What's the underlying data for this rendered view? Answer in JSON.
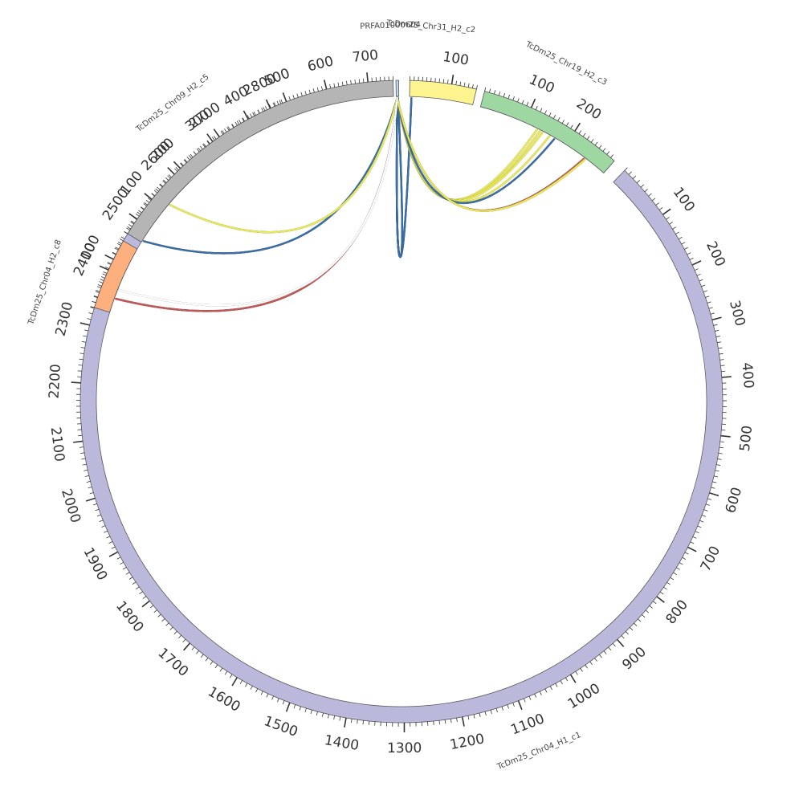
{
  "chart_data": {
    "type": "chord",
    "segments": [
      {
        "id": "c1",
        "name": "TcDm25_Chr04_H1_c1",
        "length": 2830,
        "color": "#bbb9db",
        "tick_labels": [
          100,
          200,
          300,
          400,
          500,
          600,
          700,
          800,
          900,
          1000,
          1100,
          1200,
          1300,
          1400,
          1500,
          1600,
          1700,
          1800,
          1900,
          2000,
          2100,
          2200,
          2300,
          2400,
          2500,
          2600,
          2700,
          2800
        ]
      },
      {
        "id": "c8",
        "name": "TcDm25_Chr04_H2_c8",
        "length": 140,
        "color": "#fdb07e",
        "tick_labels": [
          100
        ]
      },
      {
        "id": "c5",
        "name": "TcDm25_Chr09_H2_c5",
        "length": 760,
        "color": "#b5b5b5",
        "tick_labels": [
          100,
          200,
          300,
          400,
          500,
          600,
          700
        ]
      },
      {
        "id": "prfa",
        "name": "PRFA01000604",
        "length": 5,
        "color": "#bfd7ea",
        "tick_labels": []
      },
      {
        "id": "c2",
        "name": "TcDm25_Chr31_H2_c2",
        "length": 160,
        "color": "#fdf48f",
        "tick_labels": [
          100
        ]
      },
      {
        "id": "c3",
        "name": "TcDm25_Chr19_H2_c3",
        "length": 300,
        "color": "#9fd7a3",
        "tick_labels": [
          100,
          200
        ]
      }
    ],
    "links": [
      {
        "from": "prfa",
        "from_pos": 2,
        "to": "prfa",
        "to_pos": 2,
        "color": "#3a6ea5"
      },
      {
        "from": "prfa",
        "from_pos": 2,
        "to": "c2",
        "to_pos": 3,
        "color": "#3a6ea5"
      },
      {
        "from": "prfa",
        "from_pos": 2,
        "to": "c3",
        "to_pos": 130,
        "color": "#e8e85a"
      },
      {
        "from": "prfa",
        "from_pos": 2,
        "to": "c3",
        "to_pos": 137,
        "color": "#e8e85a"
      },
      {
        "from": "prfa",
        "from_pos": 2,
        "to": "c3",
        "to_pos": 143,
        "color": "#e8e85a"
      },
      {
        "from": "prfa",
        "from_pos": 2,
        "to": "c3",
        "to_pos": 160,
        "color": "#e8e85a"
      },
      {
        "from": "prfa",
        "from_pos": 2,
        "to": "c3",
        "to_pos": 172,
        "color": "#3a6ea5"
      },
      {
        "from": "prfa",
        "from_pos": 2,
        "to": "c3",
        "to_pos": 248,
        "color": "#c05858"
      },
      {
        "from": "prfa",
        "from_pos": 2,
        "to": "c3",
        "to_pos": 251,
        "color": "#e8e85a"
      },
      {
        "from": "prfa",
        "from_pos": 2,
        "to": "c5",
        "to_pos": 5,
        "color": "#3a6ea5"
      },
      {
        "from": "prfa",
        "from_pos": 2,
        "to": "c8",
        "to_pos": 30,
        "color": "#c05858"
      },
      {
        "from": "prfa",
        "from_pos": 2,
        "to": "c1",
        "to_pos": 2555,
        "color": "#e8e85a"
      },
      {
        "from": "prfa",
        "from_pos": 2,
        "to": "c1",
        "to_pos": 2375,
        "color": "#ffffff"
      }
    ]
  }
}
